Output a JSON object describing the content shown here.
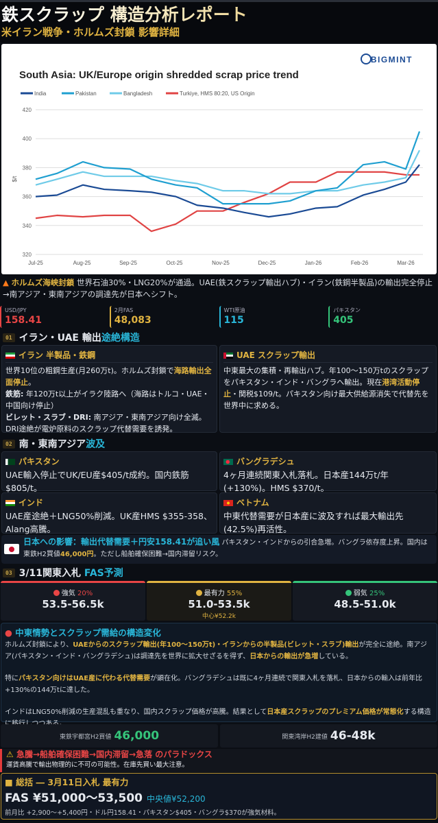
{
  "header": {
    "title": "鉄スクラップ 構造分析レポート",
    "subtitle": "米イラン戦争・ホルムズ封鎖 影響詳細"
  },
  "chart_data": {
    "type": "line",
    "title": "South Asia: UK/Europe origin shredded scrap price trend",
    "brand": "BIGMINT",
    "ylabel": "$/t",
    "ylim": [
      320,
      420
    ],
    "yticks": [
      320,
      340,
      360,
      380,
      400,
      420
    ],
    "xticks": [
      "Jul-25",
      "Aug-25",
      "Sep-25",
      "Oct-25",
      "Nov-25",
      "Dec-25",
      "Jan-26",
      "Feb-26",
      "Mar-26"
    ],
    "grid": true,
    "legend": "top-left",
    "x": [
      "2025-07-01",
      "2025-07-15",
      "2025-08-01",
      "2025-08-15",
      "2025-09-01",
      "2025-09-15",
      "2025-10-01",
      "2025-10-15",
      "2025-11-01",
      "2025-11-15",
      "2025-12-01",
      "2025-12-15",
      "2026-01-01",
      "2026-01-15",
      "2026-02-01",
      "2026-02-15",
      "2026-03-01",
      "2026-03-10"
    ],
    "series": [
      {
        "name": "India",
        "color": "#1a4a94",
        "values": [
          360,
          361,
          368,
          365,
          364,
          363,
          360,
          354,
          352,
          349,
          346,
          348,
          352,
          353,
          361,
          365,
          370,
          382
        ]
      },
      {
        "name": "Pakistan",
        "color": "#1f9fd0",
        "values": [
          372,
          376,
          384,
          380,
          379,
          372,
          368,
          366,
          355,
          355,
          355,
          357,
          364,
          366,
          382,
          384,
          379,
          405
        ]
      },
      {
        "name": "Bangladesh",
        "color": "#6fcbe8",
        "values": [
          368,
          372,
          377,
          374,
          374,
          374,
          371,
          369,
          364,
          364,
          362,
          362,
          364,
          364,
          368,
          370,
          373,
          392
        ]
      },
      {
        "name": "Turkiye, HMS 80:20, US Origin",
        "color": "#e04343",
        "values": [
          345,
          347,
          346,
          347,
          347,
          336,
          341,
          350,
          350,
          356,
          362,
          370,
          370,
          377,
          377,
          377,
          375,
          375
        ]
      }
    ]
  },
  "alert": {
    "label": "ホルムズ海峡封鎖",
    "text": " 世界石油30%・LNG20%が通過。UAE(鉄スクラップ輸出ハブ)・イラン(鉄鋼半製品)の輸出完全停止→南アジア・東南アジアの調達先が日本へシフト。"
  },
  "stats": [
    {
      "label": "USD/JPY",
      "value": "158.41",
      "color": "#e84545"
    },
    {
      "label": "2月FAS",
      "value": "48,083",
      "color": "#e0b341"
    },
    {
      "label": "WTI原油",
      "value": "115",
      "color": "#29b6d8"
    },
    {
      "label": "パキスタン",
      "value": "405",
      "color": "#35c47a"
    }
  ],
  "sec1": {
    "num": "01",
    "title": "イラン・UAE 輸出",
    "accent": "途絶構造"
  },
  "iran": {
    "title": "イラン 半製品・鉄鋼",
    "p1": [
      {
        "t": "世界10位の粗鋼生産(月260万t)。ホルムズ封鎖で"
      },
      {
        "t": "海路輸出全面停止",
        "h": 1
      },
      {
        "t": "。"
      }
    ],
    "p2": [
      {
        "t": "鉄筋:",
        "b": 1
      },
      {
        "t": " 年120万t以上がイラク陸路へ（海路はトルコ・UAE・中国向け停止）"
      }
    ],
    "p3": [
      {
        "t": "ビレット・スラブ・DRI:",
        "b": 1
      },
      {
        "t": " 南アジア・東南アジア向け全滅。DRI途絶が電炉原料のスクラップ代替需要を誘発。"
      }
    ]
  },
  "uae": {
    "title": "UAE スクラップ輸出",
    "p1": [
      {
        "t": "中東最大の集積・再輸出ハブ。年100〜150万tのスクラップをパキスタン・インド・バングラへ輸出。現在"
      },
      {
        "t": "港湾活動停止",
        "h": 1
      },
      {
        "t": "・関税$109/t。パキスタン向け最大供給源消失で代替先を世界中に求める。"
      }
    ]
  },
  "sec2": {
    "num": "02",
    "title": "南・東南アジア",
    "accent": "波及"
  },
  "countries": [
    {
      "name": "パキスタン",
      "text": "UAE輸入停止でUK/EU産$405/t成約。国内鉄筋$805/t。"
    },
    {
      "name": "バングラデシュ",
      "text": "4ヶ月連続関東入札落札。日本産144万t/年(+130%)。HMS $370/t。"
    },
    {
      "name": "インド",
      "text": "UAE産途絶＋LNG50%削減。UK産HMS $355-358、Alang高騰。"
    },
    {
      "name": "ベトナム",
      "text": "中東代替需要が日本産に波及すれば最大輸出先(42.5%)再活性。"
    }
  ],
  "japan": {
    "title": "日本への影響：輸出代替需要＋円安158.41が追い風",
    "p": [
      {
        "t": " パキスタン・インドからの引合急増。バングラ依存度上昇。国内は東鉄H2買値"
      },
      {
        "t": "46,000円",
        "h": 1
      },
      {
        "t": "。ただし船舶確保困難→国内滞留リスク。"
      }
    ]
  },
  "sec3": {
    "num": "03",
    "title": "3/11関東入札",
    "accent": "FAS予測"
  },
  "scenarios": [
    {
      "label": "強気",
      "pct": "20%",
      "range": "53.5-56.5k",
      "color": "#e84545",
      "center": ""
    },
    {
      "label": "最有力",
      "pct": "55%",
      "range": "51.0-53.5k",
      "color": "#e0b341",
      "center": "中心¥52.2k"
    },
    {
      "label": "弱気",
      "pct": "25%",
      "range": "48.5-51.0k",
      "color": "#35c47a",
      "center": ""
    }
  ],
  "structure": {
    "title": "中東情勢とスクラップ需給の構造変化",
    "p1": [
      {
        "t": "ホルムズ封鎖により、"
      },
      {
        "t": "UAEからのスクラップ輸出(年100〜150万t)・イランからの半製品(ビレット・スラブ)輸出",
        "h": 1
      },
      {
        "t": "が完全に途絶。南アジア(パキスタン・インド・バングラデシュ)は調達先を世界に拡大せざるを得ず、"
      },
      {
        "t": "日本からの輸出が急増",
        "h": 1
      },
      {
        "t": "している。"
      }
    ],
    "p2": [
      {
        "t": "特に"
      },
      {
        "t": "パキスタン向けはUAE産に代わる代替需要",
        "h": 1
      },
      {
        "t": "が顕在化。バングラデシュは既に4ヶ月連続で関東入札を落札、日本からの輸入は前年比+130%の144万tに達した。"
      }
    ],
    "p3": [
      {
        "t": "インドはLNG50%削減の生産混乱も重なり、国内スクラップ価格が高騰。結果として"
      },
      {
        "t": "日本産スクラップのプレミアム価格が常態化",
        "h": 1
      },
      {
        "t": "する構造に移行しつつある。"
      }
    ]
  },
  "prices": [
    {
      "label": "東鉄宇都宮H2買値",
      "value": "46,000",
      "color": "#35c47a"
    },
    {
      "label": "関東湾岸H2建値",
      "value": "46-48k",
      "color": "#ffffff"
    }
  ],
  "warning": {
    "title": "急騰→船舶確保困難→国内滞留→急落 のパラドックス",
    "body": "運賃高騰で輸出物理的に不可の可能性。在庫先買い最大注意。"
  },
  "summary": {
    "title": "総括 ― 3月11日入札 最有力",
    "price": "FAS ¥51,000〜53,500",
    "median": "中央値¥52,200",
    "note": "前月比 +2,900〜+5,400円・ドル円158.41・パキスタン$405・バングラ$370が強気材料。"
  }
}
